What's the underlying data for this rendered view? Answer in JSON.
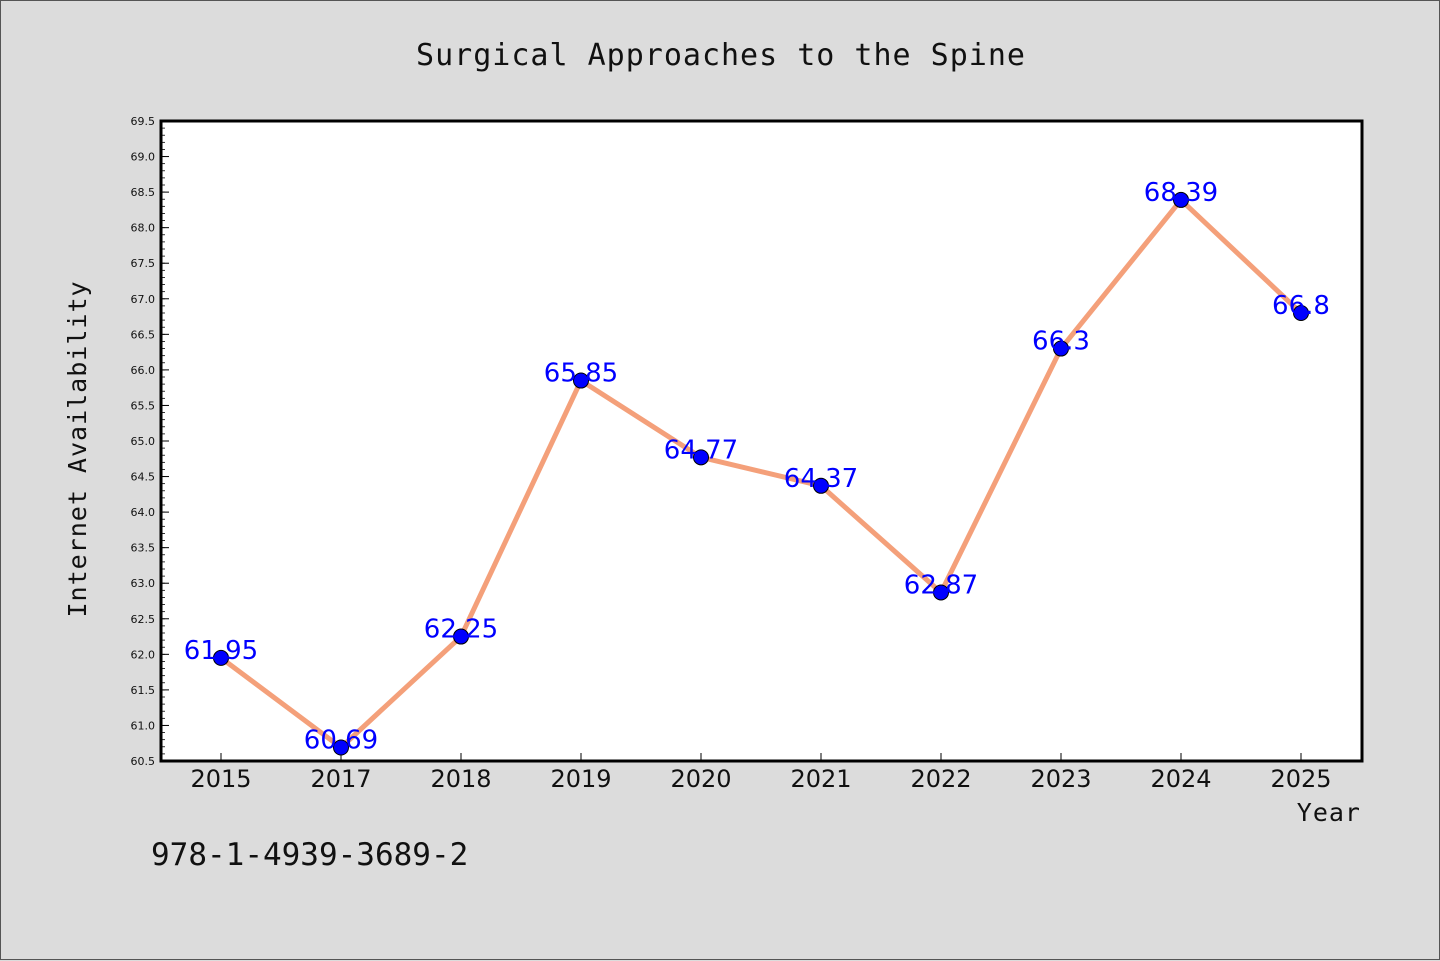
{
  "chart_data": {
    "type": "line",
    "title": "Surgical Approaches to the Spine",
    "xlabel": "Year",
    "ylabel": "Internet Availability",
    "categories": [
      "2015",
      "2017",
      "2018",
      "2019",
      "2020",
      "2021",
      "2022",
      "2023",
      "2024",
      "2025"
    ],
    "series": [
      {
        "values": [
          61.95,
          60.69,
          62.25,
          65.85,
          64.77,
          64.37,
          62.87,
          66.3,
          68.39,
          66.8
        ],
        "data_labels": [
          "61.95",
          "60.69",
          "62.25",
          "65.85",
          "64.77",
          "64.37",
          "62.87",
          "66.3",
          "68.39",
          "66.8"
        ],
        "line_color": "#f4a07a",
        "marker_color": "#0000ff"
      }
    ],
    "ylim": [
      60.5,
      69.5
    ],
    "yticks": [
      "60.5",
      "61.0",
      "61.5",
      "62.0",
      "62.5",
      "63.0",
      "63.5",
      "64.0",
      "64.5",
      "65.0",
      "65.5",
      "66.0",
      "66.5",
      "67.0",
      "67.5",
      "68.0",
      "68.5",
      "69.0",
      "69.5"
    ],
    "grid": false,
    "legend": false
  },
  "footer_text": "978-1-4939-3689-2",
  "colors": {
    "background": "#dcdcdc",
    "plot_background": "#ffffff",
    "data_label": "#0000ff"
  }
}
